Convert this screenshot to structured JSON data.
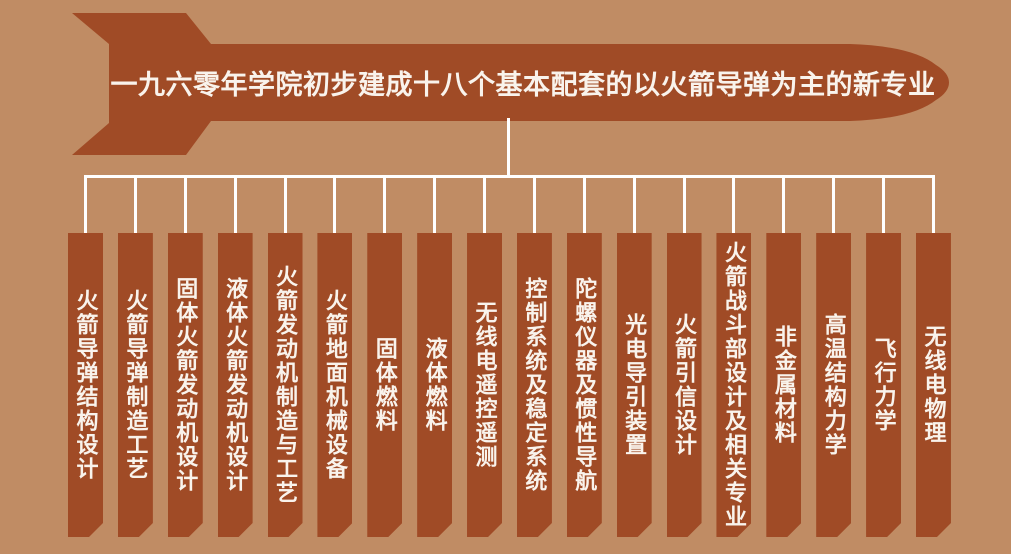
{
  "colors": {
    "background": "#c08c64",
    "bar": "#a04b26",
    "line": "#ffffff",
    "text": "#f9f3ec"
  },
  "banner": {
    "title": "一九六零年学院初步建成十八个基本配套的以火箭导弹为主的新专业"
  },
  "majors": [
    {
      "label": "火箭导弹结构设计"
    },
    {
      "label": "火箭导弹制造工艺"
    },
    {
      "label": "固体火箭发动机设计"
    },
    {
      "label": "液体火箭发动机设计"
    },
    {
      "label": "火箭发动机制造与工艺"
    },
    {
      "label": "火箭地面机械设备"
    },
    {
      "label": "固体燃料"
    },
    {
      "label": "液体燃料"
    },
    {
      "label": "无线电遥控遥测"
    },
    {
      "label": "控制系统及稳定系统"
    },
    {
      "label": "陀螺仪器及惯性导航"
    },
    {
      "label": "光电导引装置"
    },
    {
      "label": "火箭引信设计"
    },
    {
      "label": "火箭战斗部设计及相关专业"
    },
    {
      "label": "非金属材料"
    },
    {
      "label": "高温结构力学"
    },
    {
      "label": "飞行力学"
    },
    {
      "label": "无线电物理"
    }
  ]
}
